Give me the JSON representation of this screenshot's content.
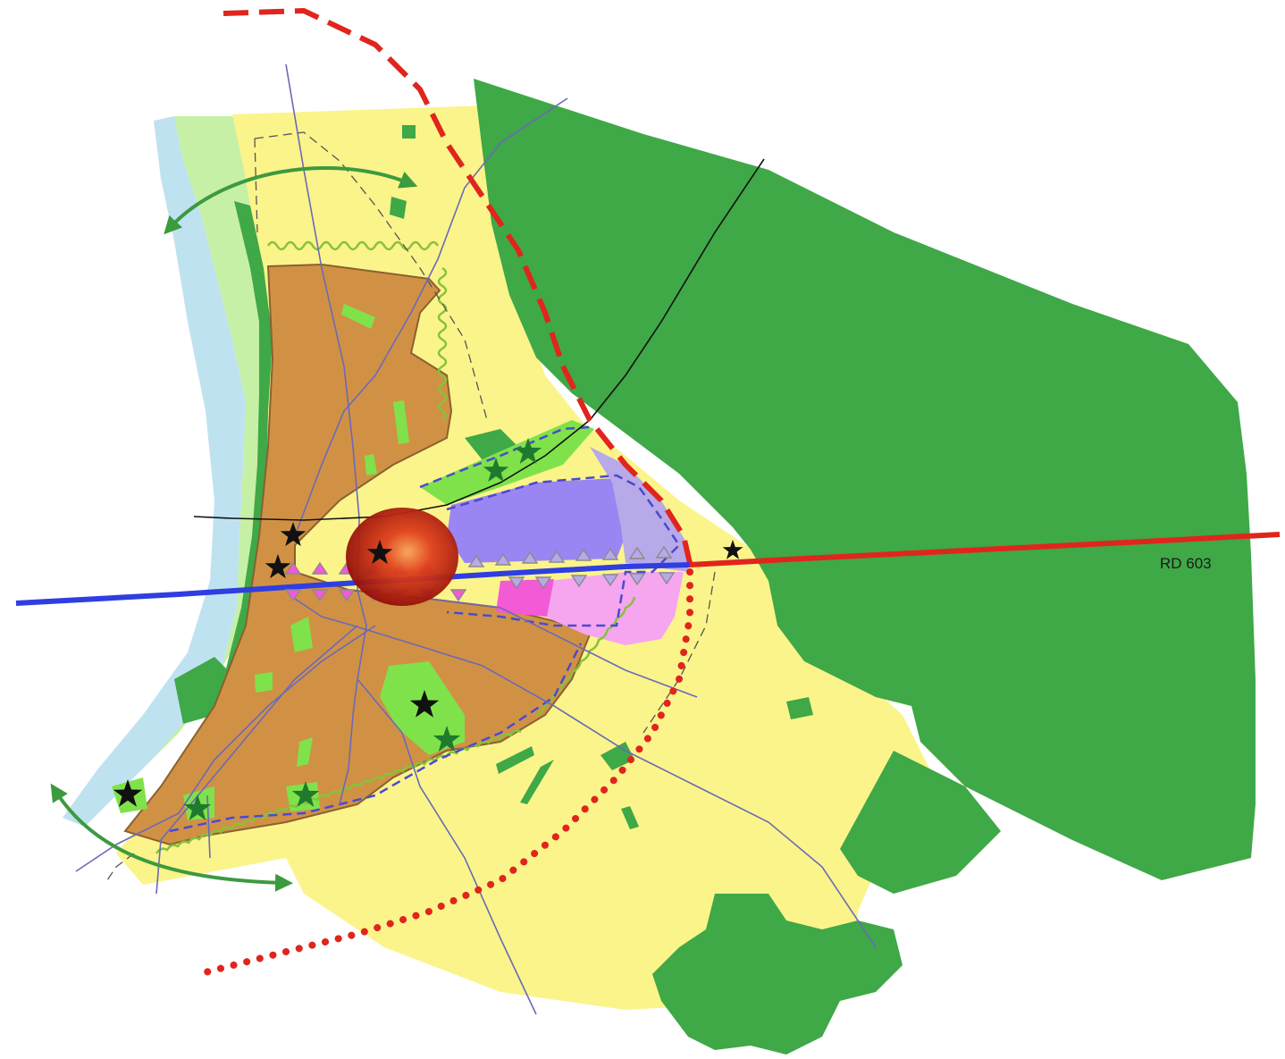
{
  "map": {
    "labels": {
      "road": "RD 603"
    },
    "colors": {
      "forest": "#3fa847",
      "agricultural": "#fbf48a",
      "urban": "#d19145",
      "river": "#bfe2f0",
      "river_bank": "#c6f0a5",
      "park": "#7fe24a",
      "activity": "#9a86f2",
      "activity_light": "#b8a9e8",
      "pink_zone": "#f5a6ef",
      "magenta_zone": "#f25ad6",
      "red_road": "#e0251d",
      "blue_road": "#2f3ee0",
      "road_line": "#6a6ab8",
      "center": "#b4120c",
      "hedge": "#86c23a"
    },
    "icons": [
      "star-icon",
      "double-arrow-icon",
      "triangle-marker-icon"
    ]
  }
}
